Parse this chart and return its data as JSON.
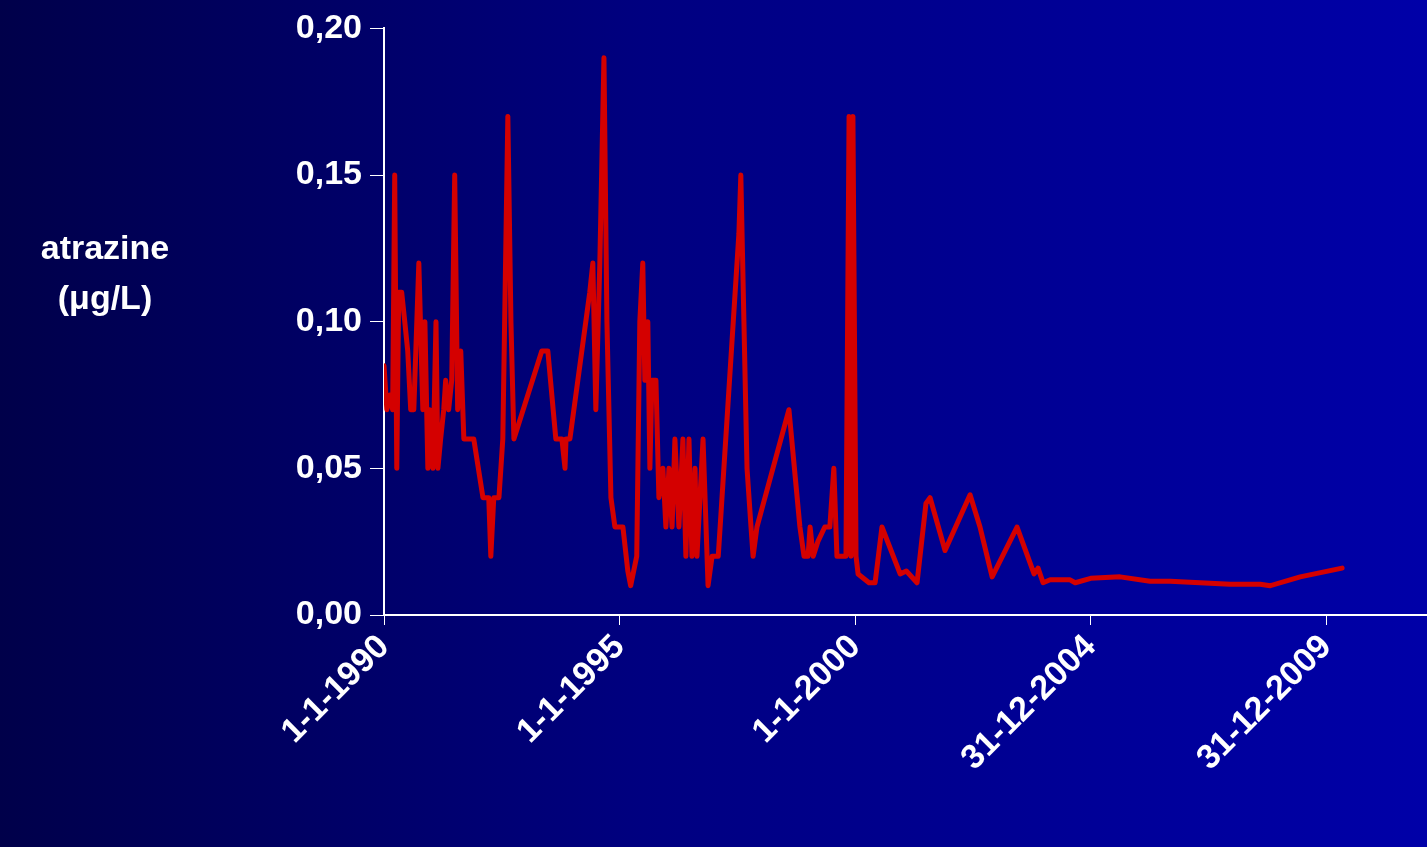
{
  "chart_data": {
    "type": "line",
    "ylabel": "atrazine (μg/L)",
    "xlim": [
      "1990-01-01",
      "2012-02-20"
    ],
    "xticks": [
      {
        "value": "1990-01-01",
        "label": "1-1-1990"
      },
      {
        "value": "1995-01-01",
        "label": "1-1-1995"
      },
      {
        "value": "2000-01-01",
        "label": "1-1-2000"
      },
      {
        "value": "2004-12-31",
        "label": "31-12-2004"
      },
      {
        "value": "2009-12-31",
        "label": "31-12-2009"
      }
    ],
    "ylim": [
      0,
      0.2
    ],
    "yticks": [
      {
        "value": 0,
        "label": "0,00"
      },
      {
        "value": 0.05,
        "label": "0,05"
      },
      {
        "value": 0.1,
        "label": "0,10"
      },
      {
        "value": 0.15,
        "label": "0,15"
      },
      {
        "value": 0.2,
        "label": "0,20"
      }
    ],
    "grid": false,
    "series": [
      {
        "color": "#d40000",
        "x": [
          "1990-01-01",
          "1990-01-23",
          "1990-02-16",
          "1990-03-09",
          "1990-03-25",
          "1990-04-10",
          "1990-04-25",
          "1990-05-18",
          "1990-06-11",
          "1990-07-04",
          "1990-07-27",
          "1990-08-20",
          "1990-09-28",
          "1990-10-29",
          "1990-11-14",
          "1990-12-07",
          "1990-12-22",
          "1991-01-15",
          "1991-02-08",
          "1991-02-23",
          "1991-03-16",
          "1991-04-09",
          "1991-04-24",
          "1991-05-17",
          "1991-06-10",
          "1991-07-03",
          "1991-07-26",
          "1991-08-19",
          "1991-09-12",
          "1991-10-28",
          "1991-11-28",
          "1992-02-07",
          "1992-03-23",
          "1992-04-08",
          "1992-05-01",
          "1992-06-10",
          "1992-07-10",
          "1992-08-18",
          "1992-09-11",
          "1992-10-04",
          "1993-05-08",
          "1993-06-24",
          "1993-08-25",
          "1993-10-11",
          "1993-11-04",
          "1993-11-12",
          "1993-12-12",
          "1994-05-15",
          "1994-06-08",
          "1994-07-01",
          "1994-08-01",
          "1994-09-02",
          "1994-09-25",
          "1994-10-26",
          "1994-11-26",
          "1995-01-27",
          "1995-03-06",
          "1995-03-28",
          "1995-05-14",
          "1995-06-07",
          "1995-06-30",
          "1995-07-16",
          "1995-08-08",
          "1995-08-24",
          "1995-09-09",
          "1995-10-10",
          "1995-11-02",
          "1995-12-03",
          "1995-12-26",
          "1996-01-19",
          "1996-02-12",
          "1996-03-05",
          "1996-04-05",
          "1996-05-06",
          "1996-05-29",
          "1996-06-22",
          "1996-07-15",
          "1996-08-08",
          "1996-08-23",
          "1996-10-09",
          "1996-11-17",
          "1996-12-18",
          "1997-02-04",
          "1997-07-14",
          "1997-07-29",
          "1997-08-22",
          "1997-09-15",
          "1997-10-16",
          "1997-11-01",
          "1997-12-01",
          "1998-08-06",
          "1998-10-30",
          "1998-12-01",
          "1999-01-01",
          "1999-01-17",
          "1999-02-10",
          "1999-03-18",
          "1999-05-11",
          "1999-06-19",
          "1999-07-20",
          "1999-08-13",
          "1999-10-22",
          "1999-11-15",
          "1999-11-30",
          "1999-12-15",
          "2000-01-08",
          "2000-01-24",
          "2000-04-18",
          "2000-06-04",
          "2000-07-27",
          "2000-12-15",
          "2001-02-01",
          "2001-04-25",
          "2001-07-03",
          "2001-08-04",
          "2001-11-28",
          "2002-06-10",
          "2002-08-26",
          "2002-11-28",
          "2003-06-09",
          "2003-10-19",
          "2003-11-19",
          "2003-12-28",
          "2004-02-21",
          "2004-07-24",
          "2004-09-02",
          "2004-12-31",
          "2005-08-16",
          "2006-04-05",
          "2006-09-08",
          "2007-04-28",
          "2007-12-17",
          "2008-08-06",
          "2008-10-23",
          "2009-06-12",
          "2010-05-03"
        ],
        "values": [
          0.085,
          0.07,
          0.075,
          0.07,
          0.15,
          0.05,
          0.11,
          0.11,
          0.1,
          0.09,
          0.07,
          0.07,
          0.12,
          0.07,
          0.1,
          0.05,
          0.07,
          0.05,
          0.1,
          0.05,
          0.06,
          0.07,
          0.08,
          0.07,
          0.08,
          0.15,
          0.07,
          0.09,
          0.06,
          0.06,
          0.06,
          0.04,
          0.04,
          0.02,
          0.04,
          0.04,
          0.06,
          0.17,
          0.1,
          0.06,
          0.09,
          0.09,
          0.06,
          0.06,
          0.05,
          0.06,
          0.06,
          0.11,
          0.12,
          0.07,
          0.12,
          0.19,
          0.1,
          0.04,
          0.03,
          0.03,
          0.015,
          0.01,
          0.02,
          0.1,
          0.12,
          0.08,
          0.1,
          0.05,
          0.08,
          0.08,
          0.04,
          0.05,
          0.03,
          0.05,
          0.03,
          0.06,
          0.03,
          0.06,
          0.02,
          0.06,
          0.02,
          0.05,
          0.02,
          0.06,
          0.01,
          0.02,
          0.02,
          0.13,
          0.15,
          0.1,
          0.05,
          0.03,
          0.02,
          0.03,
          0.07,
          0.03,
          0.02,
          0.02,
          0.03,
          0.02,
          0.025,
          0.03,
          0.03,
          0.05,
          0.02,
          0.02,
          0.17,
          0.02,
          0.17,
          0.02,
          0.014,
          0.011,
          0.011,
          0.03,
          0.014,
          0.015,
          0.011,
          0.038,
          0.04,
          0.022,
          0.041,
          0.03,
          0.013,
          0.03,
          0.014,
          0.016,
          0.011,
          0.012,
          0.012,
          0.011,
          0.0125,
          0.013,
          0.0115,
          0.0115,
          0.011,
          0.0105,
          0.0105,
          0.01,
          0.013,
          0.016
        ]
      }
    ]
  }
}
